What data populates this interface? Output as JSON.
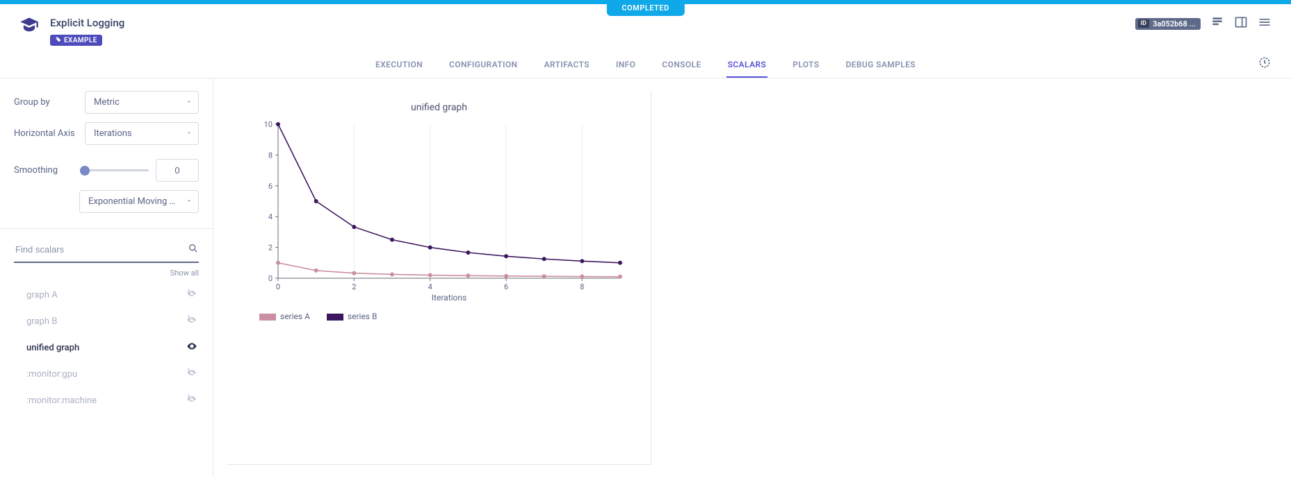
{
  "status_banner": "COMPLETED",
  "page_title": "Explicit Logging",
  "tag_label": "EXAMPLE",
  "id_chip": {
    "label": "ID",
    "value": "3a052b68 ..."
  },
  "tabs": [
    "EXECUTION",
    "CONFIGURATION",
    "ARTIFACTS",
    "INFO",
    "CONSOLE",
    "SCALARS",
    "PLOTS",
    "DEBUG SAMPLES"
  ],
  "active_tab_index": 5,
  "sidebar": {
    "group_by_label": "Group by",
    "group_by_value": "Metric",
    "horizontal_axis_label": "Horizontal Axis",
    "horizontal_axis_value": "Iterations",
    "smoothing_label": "Smoothing",
    "smoothing_value": "0",
    "smoothing_method": "Exponential Moving Ave...",
    "search_placeholder": "Find scalars",
    "show_all_label": "Show all",
    "scalars": [
      {
        "name": "graph A",
        "active": false
      },
      {
        "name": "graph B",
        "active": false
      },
      {
        "name": "unified graph",
        "active": true
      },
      {
        "name": ":monitor:gpu",
        "active": false
      },
      {
        "name": ":monitor:machine",
        "active": false
      }
    ]
  },
  "chart": {
    "title": "unified graph",
    "type": "line",
    "xlabel": "Iterations",
    "xlim": [
      0,
      9
    ],
    "ylim": [
      0,
      10
    ],
    "xticks": [
      0,
      2,
      4,
      6,
      8
    ],
    "yticks": [
      0,
      2,
      4,
      6,
      8,
      10
    ],
    "background_color": "#ffffff",
    "grid_color": "#ececf2",
    "axis_color": "#666a7a",
    "series": [
      {
        "name": "series A",
        "color": "#cb8ea2",
        "points": [
          [
            0,
            1.0
          ],
          [
            1,
            0.5
          ],
          [
            2,
            0.33
          ],
          [
            3,
            0.25
          ],
          [
            4,
            0.2
          ],
          [
            5,
            0.167
          ],
          [
            6,
            0.143
          ],
          [
            7,
            0.125
          ],
          [
            8,
            0.111
          ],
          [
            9,
            0.1
          ]
        ]
      },
      {
        "name": "series B",
        "color": "#3d175e",
        "points": [
          [
            0,
            10.0
          ],
          [
            1,
            5.0
          ],
          [
            2,
            3.33
          ],
          [
            3,
            2.5
          ],
          [
            4,
            2.0
          ],
          [
            5,
            1.667
          ],
          [
            6,
            1.429
          ],
          [
            7,
            1.25
          ],
          [
            8,
            1.111
          ],
          [
            9,
            1.0
          ]
        ]
      }
    ],
    "marker_radius": 3,
    "line_width": 1.6
  }
}
